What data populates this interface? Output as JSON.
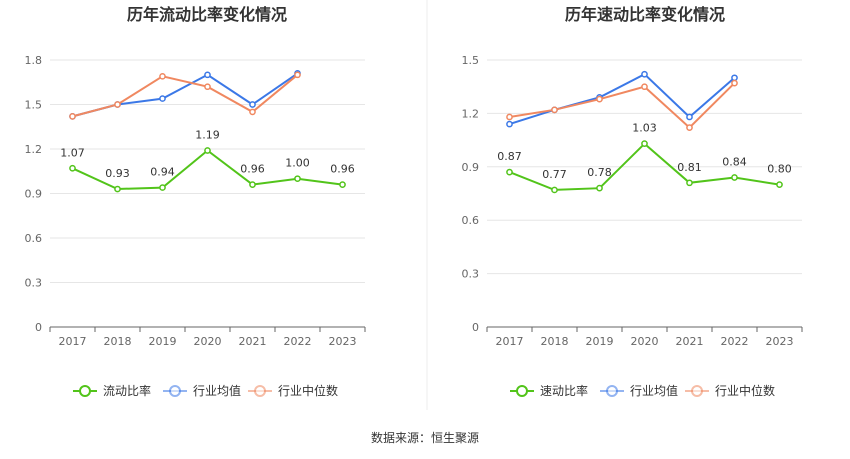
{
  "source_text": "数据来源：恒生聚源",
  "chart_data": [
    {
      "type": "line",
      "title": "历年流动比率变化情况",
      "categories": [
        "2017",
        "2018",
        "2019",
        "2020",
        "2021",
        "2022",
        "2023"
      ],
      "ylim": [
        0,
        1.8
      ],
      "yticks": [
        "0",
        "0.3",
        "0.6",
        "0.9",
        "1.2",
        "1.5",
        "1.8"
      ],
      "grid": true,
      "legend_position": "bottom",
      "series": [
        {
          "name": "流动比率",
          "color": "#52c41a",
          "values": [
            1.07,
            0.93,
            0.94,
            1.19,
            0.96,
            1.0,
            0.96
          ],
          "labels": [
            "1.07",
            "0.93",
            "0.94",
            "1.19",
            "0.96",
            "1.00",
            "0.96"
          ]
        },
        {
          "name": "行业均值",
          "color": "#3b78e7",
          "values": [
            1.42,
            1.5,
            1.54,
            1.7,
            1.5,
            1.71,
            null
          ]
        },
        {
          "name": "行业中位数",
          "color": "#f08860",
          "values": [
            1.42,
            1.5,
            1.69,
            1.62,
            1.45,
            1.7,
            null
          ]
        }
      ]
    },
    {
      "type": "line",
      "title": "历年速动比率变化情况",
      "categories": [
        "2017",
        "2018",
        "2019",
        "2020",
        "2021",
        "2022",
        "2023"
      ],
      "ylim": [
        0,
        1.5
      ],
      "yticks": [
        "0",
        "0.3",
        "0.6",
        "0.9",
        "1.2",
        "1.5"
      ],
      "grid": true,
      "legend_position": "bottom",
      "series": [
        {
          "name": "速动比率",
          "color": "#52c41a",
          "values": [
            0.87,
            0.77,
            0.78,
            1.03,
            0.81,
            0.84,
            0.8
          ],
          "labels": [
            "0.87",
            "0.77",
            "0.78",
            "1.03",
            "0.81",
            "0.84",
            "0.80"
          ]
        },
        {
          "name": "行业均值",
          "color": "#3b78e7",
          "values": [
            1.14,
            1.22,
            1.29,
            1.42,
            1.18,
            1.4,
            null
          ]
        },
        {
          "name": "行业中位数",
          "color": "#f08860",
          "values": [
            1.18,
            1.22,
            1.28,
            1.35,
            1.12,
            1.37,
            null
          ]
        }
      ]
    }
  ]
}
